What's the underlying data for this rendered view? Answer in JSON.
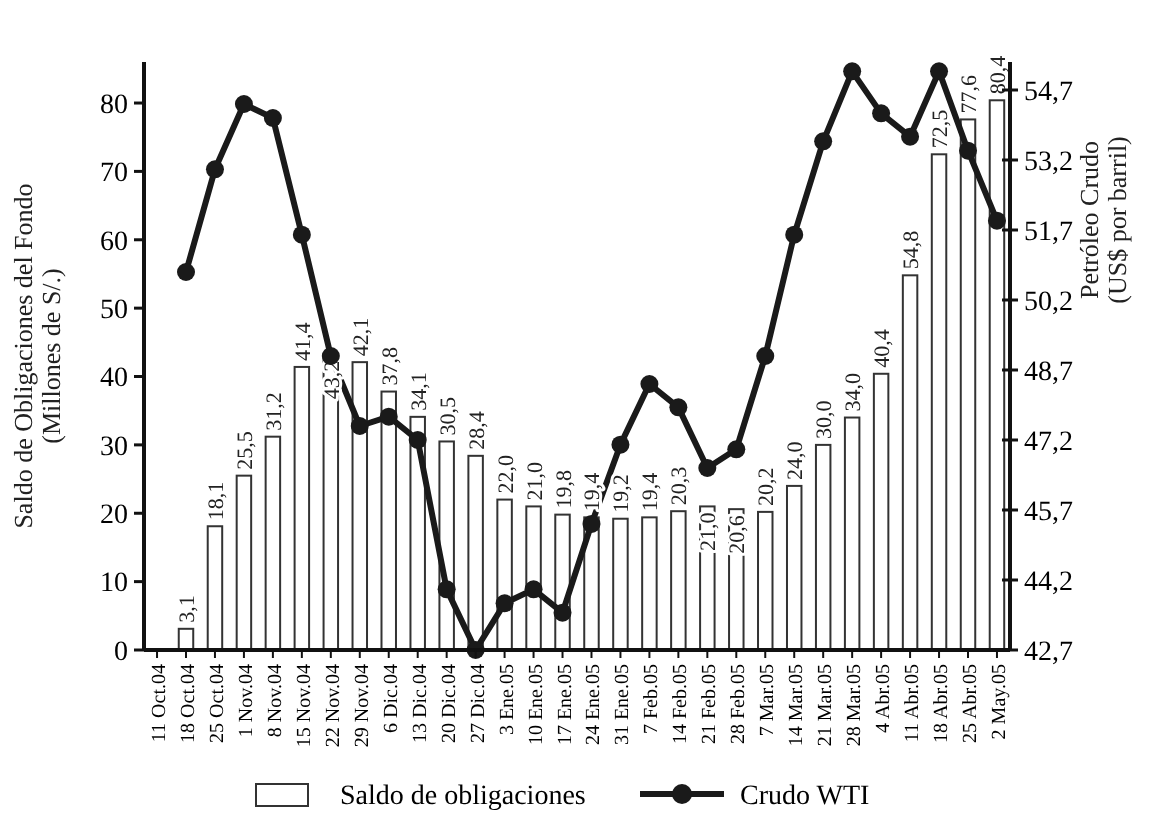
{
  "chart_data": {
    "type": "bar",
    "ylabel": "Saldo de Obligaciones del Fondo\n(Millones de S/.)",
    "y2label": "Petróleo Crudo\n(US$ por barril)",
    "categories": [
      "11 Oct.04",
      "18 Oct.04",
      "25 Oct.04",
      "1 Nov.04",
      "8 Nov.04",
      "15 Nov.04",
      "22 Nov.04",
      "29 Nov.04",
      "6 Dic.04",
      "13 Dic.04",
      "20 Dic.04",
      "27 Dic.04",
      "3 Ene.05",
      "10 Ene.05",
      "17 Ene.05",
      "24 Ene.05",
      "31 Ene.05",
      "7 Feb.05",
      "14 Feb.05",
      "21 Feb.05",
      "28 Feb.05",
      "7 Mar.05",
      "14 Mar.05",
      "21 Mar.05",
      "28 Mar.05",
      "4 Abr.05",
      "11 Abr.05",
      "18 Abr.05",
      "25 Abr.05",
      "2 May.05"
    ],
    "series": [
      {
        "name": "Saldo de obligaciones",
        "color": "#ffffff",
        "values": [
          null,
          3.1,
          18.1,
          25.5,
          31.2,
          41.4,
          43.2,
          42.1,
          37.8,
          34.1,
          30.5,
          28.4,
          22.0,
          21.0,
          19.8,
          19.4,
          19.2,
          19.4,
          20.3,
          21.0,
          20.6,
          20.2,
          24.0,
          30.0,
          34.0,
          40.4,
          54.8,
          72.5,
          77.6,
          80.4
        ],
        "value_labels": [
          null,
          "3,1",
          "18,1",
          "25,5",
          "31,2",
          "41,4",
          "43,2",
          "42,1",
          "37,8",
          "34,1",
          "30,5",
          "28,4",
          "22,0",
          "21,0",
          "19,8",
          "19,4",
          "19,2",
          "19,4",
          "20,3",
          "21,0",
          "20,6",
          "20,2",
          "24,0",
          "30,0",
          "34,0",
          "40,4",
          "54,8",
          "72,5",
          "77,6",
          "80,4"
        ]
      },
      {
        "name": "Crudo WTI",
        "type": "line",
        "axis": "y2",
        "color": "#1a1a1a",
        "marker": "circle",
        "values": [
          null,
          50.8,
          53.0,
          54.4,
          54.1,
          51.6,
          49.0,
          47.5,
          47.7,
          47.2,
          44.0,
          42.7,
          43.7,
          44.0,
          43.5,
          45.4,
          47.1,
          48.4,
          47.9,
          46.6,
          47.0,
          49.0,
          51.6,
          53.6,
          55.1,
          54.2,
          53.7,
          55.1,
          53.4,
          51.9
        ]
      }
    ],
    "ylim": [
      0,
      86
    ],
    "yticks": [
      0,
      10,
      20,
      30,
      40,
      50,
      60,
      70,
      80
    ],
    "y2lim": [
      42.7,
      55.3
    ],
    "y2ticks": [
      {
        "value": 42.7,
        "label": "42,7"
      },
      {
        "value": 44.2,
        "label": "44,2"
      },
      {
        "value": 45.7,
        "label": "45,7"
      },
      {
        "value": 47.2,
        "label": "47,2"
      },
      {
        "value": 48.7,
        "label": "48,7"
      },
      {
        "value": 50.2,
        "label": "50,2"
      },
      {
        "value": 51.7,
        "label": "51,7"
      },
      {
        "value": 53.2,
        "label": "53,2"
      },
      {
        "value": 54.7,
        "label": "54,7"
      }
    ],
    "grid": false,
    "legend": "bottom"
  }
}
